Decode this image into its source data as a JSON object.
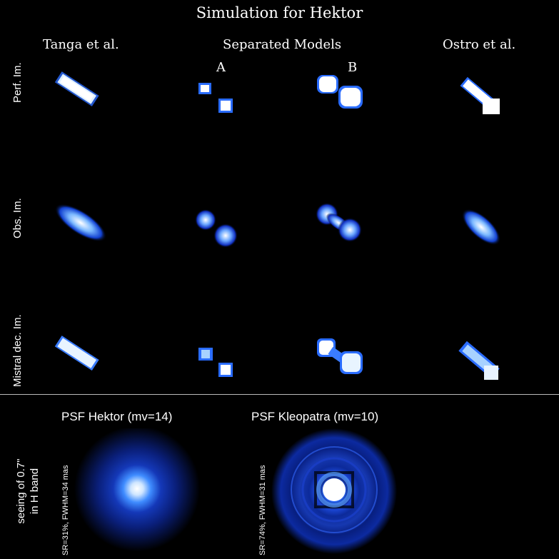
{
  "figure": {
    "title": "Simulation for Hektor",
    "columns": {
      "tanga": "Tanga et al.",
      "separated": "Separated Models",
      "model_a": "A",
      "model_b": "B",
      "ostro": "Ostro et al."
    },
    "rows": {
      "perfect": "Perf. Im.",
      "observed": "Obs. Im.",
      "mistral": "Mistral dec. Im."
    },
    "psf": {
      "hektor_title": "PSF Hektor (mv=14)",
      "hektor_stat": "SR=31%, FWHM=34 mas",
      "kleopatra_title": "PSF Kleopatra (mv=10)",
      "kleopatra_stat": "SR=74%, FWHM=31 mas",
      "seeing_line1": "seeing of 0.7\"",
      "seeing_line2": "in H band"
    },
    "colors": {
      "background": "#000000",
      "blob_core": "#ffffff",
      "blob_mid": "#5aa8ff",
      "blob_edge": "#0a2aa0",
      "divider": "#bbbbbb"
    }
  }
}
